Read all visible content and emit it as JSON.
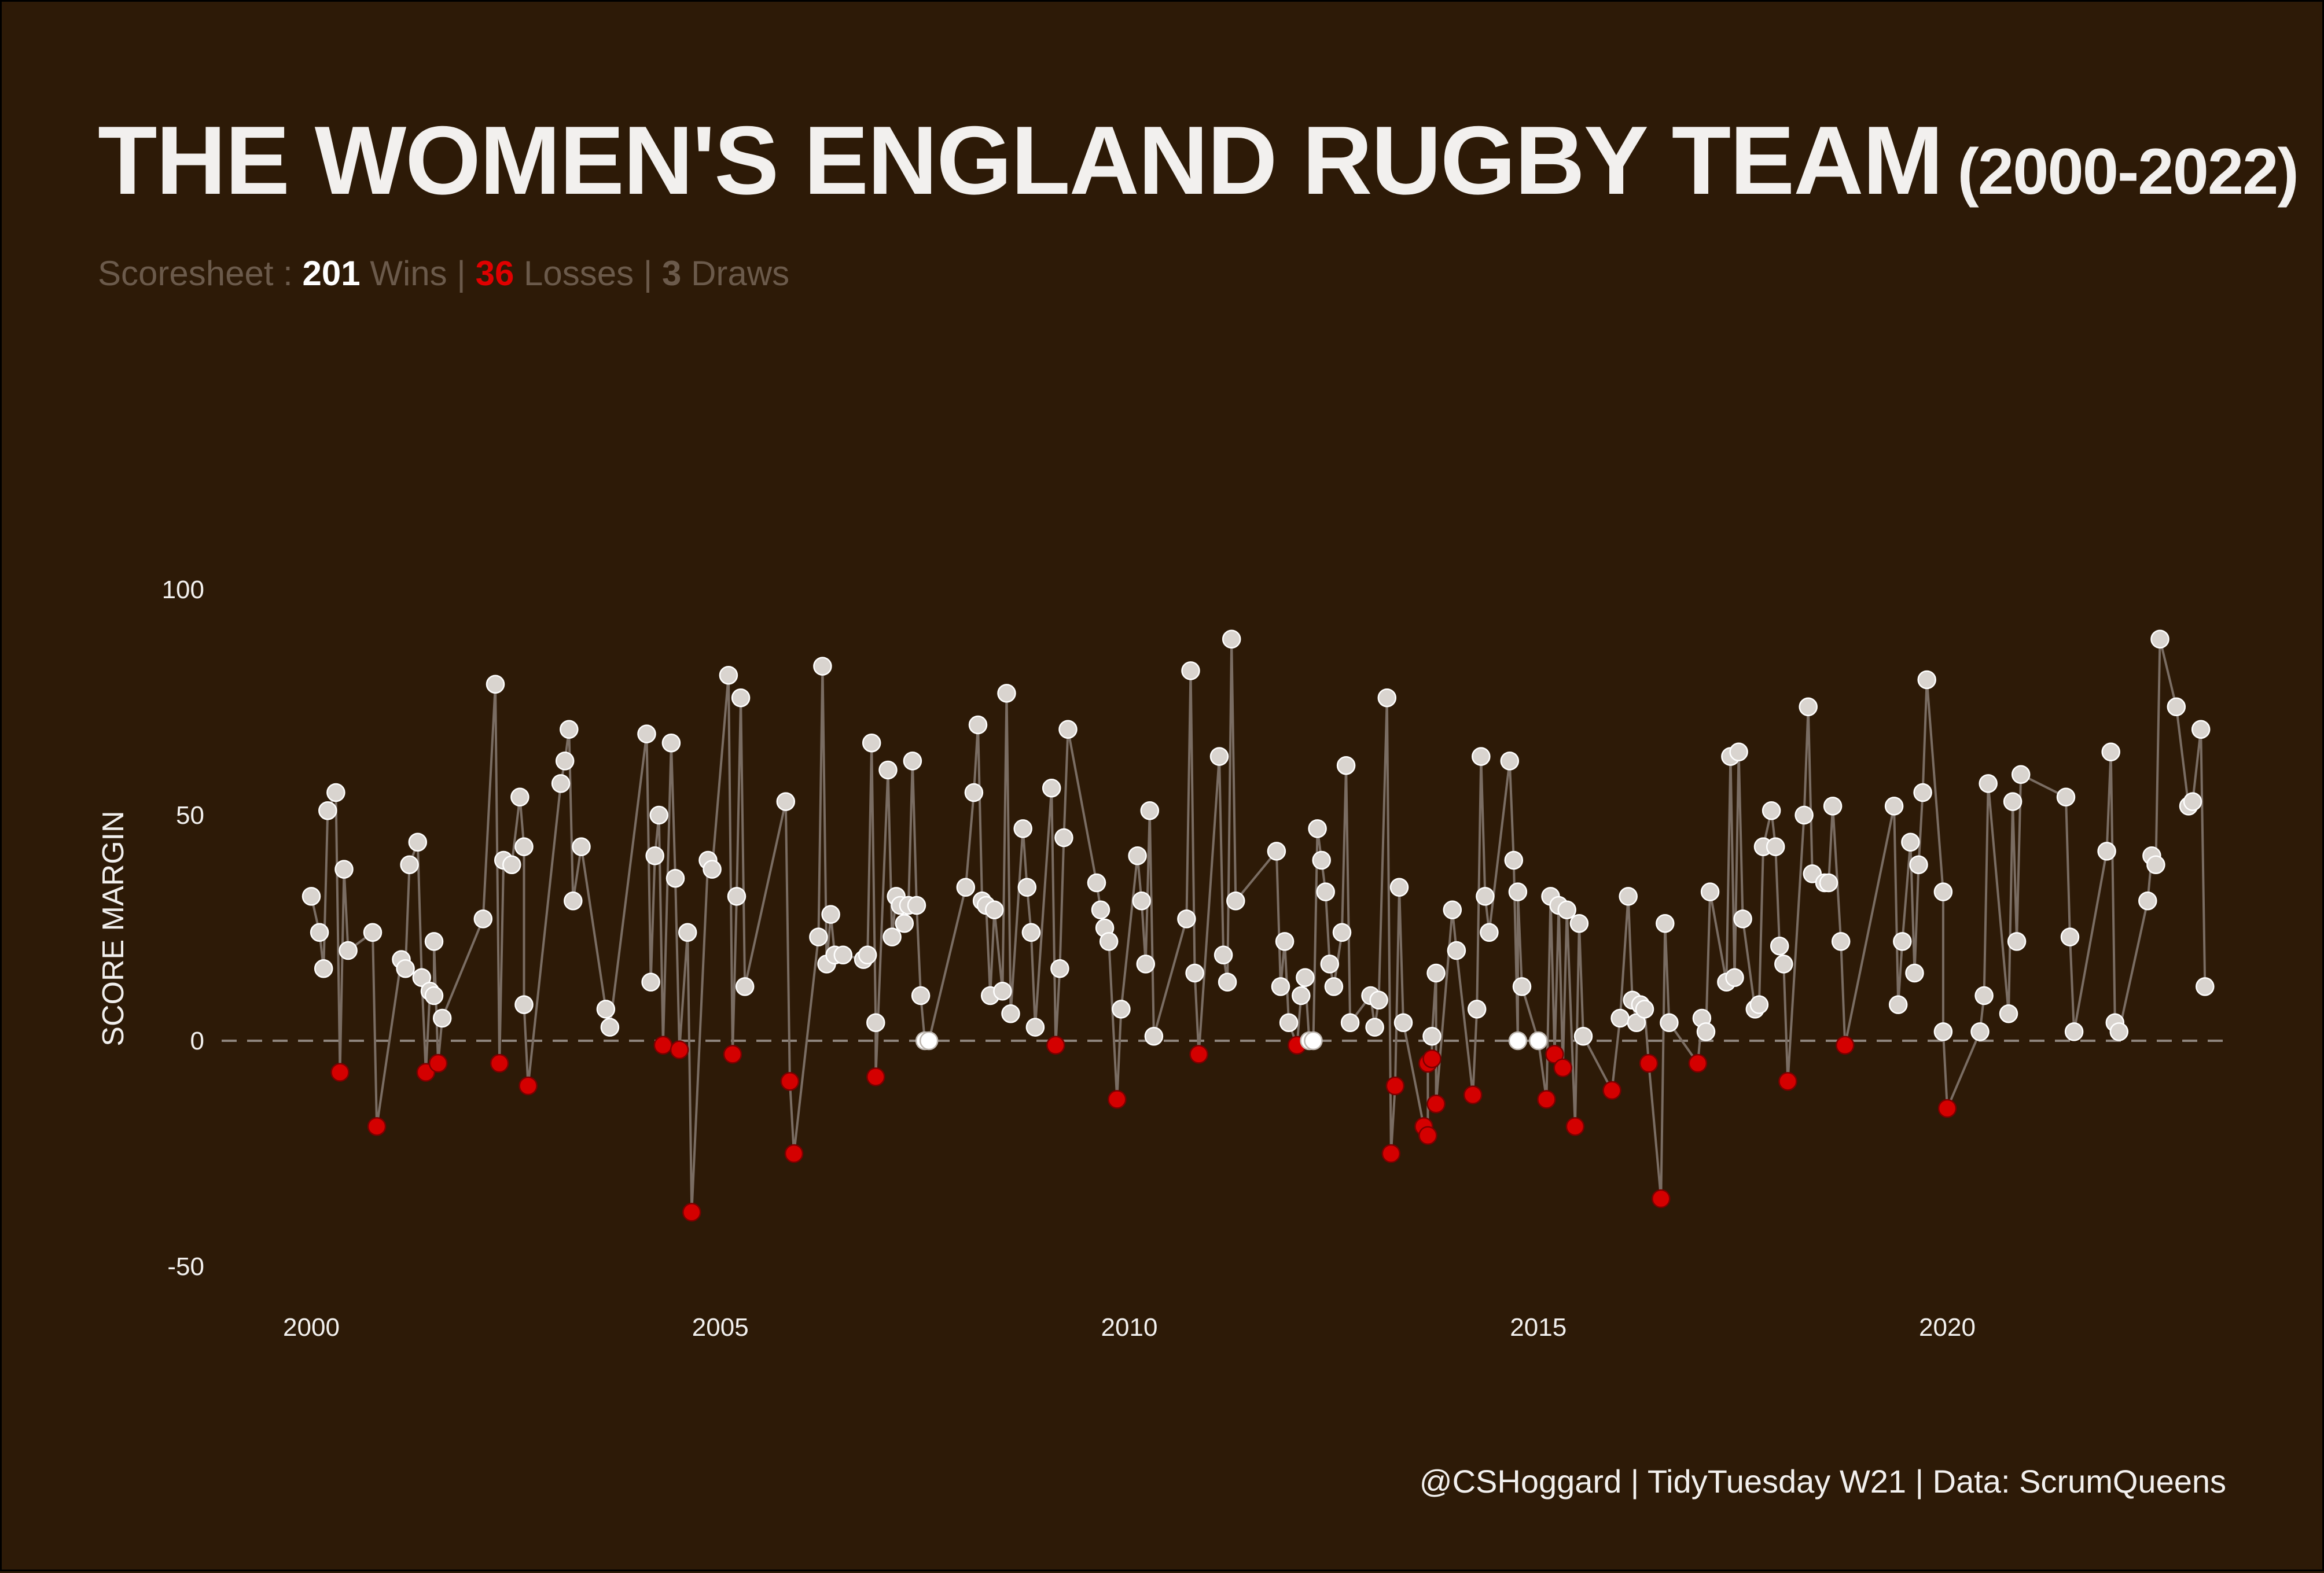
{
  "title": {
    "main": "THE WOMEN'S ENGLAND RUGBY TEAM",
    "years": "(2000-2022)"
  },
  "subtitle": {
    "prefix": "Scoresheet : ",
    "wins": "201",
    "wins_label": " Wins | ",
    "losses": "36",
    "losses_label": " Losses | ",
    "draws": "3",
    "draws_label": " Draws"
  },
  "caption": "@CSHoggard | TidyTuesday W21 | Data: ScrumQueens",
  "colors": {
    "background": "#2d1a07",
    "win": "#d9d4cf",
    "loss": "#d40000",
    "draw": "#ffffff",
    "line": "#7a6d63",
    "zero_line": "#8f857d"
  },
  "chart_data": {
    "type": "scatter",
    "ylabel": "SCORE MARGIN",
    "xlabel": "",
    "xlim": [
      1998.6,
      2023.4
    ],
    "ylim": [
      -60,
      110
    ],
    "xticks": [
      "2000",
      "2005",
      "2010",
      "2015",
      "2020"
    ],
    "yticks": [
      "100",
      "50",
      "0",
      "-50"
    ],
    "reference_line": 0,
    "connect_points": true,
    "grid": false,
    "points": [
      [
        2000.0,
        32
      ],
      [
        2000.1,
        24
      ],
      [
        2000.15,
        16
      ],
      [
        2000.2,
        51
      ],
      [
        2000.3,
        55
      ],
      [
        2000.35,
        -7
      ],
      [
        2000.4,
        38
      ],
      [
        2000.45,
        20
      ],
      [
        2000.75,
        24
      ],
      [
        2000.8,
        -19
      ],
      [
        2001.1,
        18
      ],
      [
        2001.15,
        16
      ],
      [
        2001.2,
        39
      ],
      [
        2001.3,
        44
      ],
      [
        2001.35,
        14
      ],
      [
        2001.4,
        -7
      ],
      [
        2001.45,
        11
      ],
      [
        2001.5,
        10
      ],
      [
        2001.5,
        22
      ],
      [
        2001.55,
        -5
      ],
      [
        2001.6,
        5
      ],
      [
        2002.1,
        27
      ],
      [
        2002.25,
        79
      ],
      [
        2002.3,
        -5
      ],
      [
        2002.35,
        40
      ],
      [
        2002.45,
        39
      ],
      [
        2002.55,
        54
      ],
      [
        2002.6,
        43
      ],
      [
        2002.6,
        8
      ],
      [
        2002.65,
        -10
      ],
      [
        2003.05,
        57
      ],
      [
        2003.1,
        62
      ],
      [
        2003.15,
        69
      ],
      [
        2003.2,
        31
      ],
      [
        2003.3,
        43
      ],
      [
        2003.6,
        7
      ],
      [
        2003.65,
        3
      ],
      [
        2004.1,
        68
      ],
      [
        2004.15,
        13
      ],
      [
        2004.2,
        41
      ],
      [
        2004.25,
        50
      ],
      [
        2004.3,
        -1
      ],
      [
        2004.4,
        66
      ],
      [
        2004.45,
        36
      ],
      [
        2004.5,
        -2
      ],
      [
        2004.6,
        24
      ],
      [
        2004.65,
        -38
      ],
      [
        2004.85,
        40
      ],
      [
        2004.9,
        38
      ],
      [
        2005.1,
        81
      ],
      [
        2005.15,
        -3
      ],
      [
        2005.2,
        32
      ],
      [
        2005.25,
        76
      ],
      [
        2005.3,
        12
      ],
      [
        2005.8,
        53
      ],
      [
        2005.85,
        -9
      ],
      [
        2005.9,
        -25
      ],
      [
        2006.2,
        23
      ],
      [
        2006.25,
        83
      ],
      [
        2006.3,
        17
      ],
      [
        2006.35,
        28
      ],
      [
        2006.4,
        19
      ],
      [
        2006.5,
        19
      ],
      [
        2006.75,
        18
      ],
      [
        2006.8,
        19
      ],
      [
        2006.85,
        66
      ],
      [
        2006.9,
        4
      ],
      [
        2006.9,
        -8
      ],
      [
        2007.05,
        60
      ],
      [
        2007.1,
        23
      ],
      [
        2007.15,
        32
      ],
      [
        2007.2,
        30
      ],
      [
        2007.25,
        26
      ],
      [
        2007.3,
        30
      ],
      [
        2007.35,
        62
      ],
      [
        2007.4,
        30
      ],
      [
        2007.45,
        10
      ],
      [
        2007.5,
        0
      ],
      [
        2007.55,
        0
      ],
      [
        2008.0,
        34
      ],
      [
        2008.1,
        55
      ],
      [
        2008.15,
        70
      ],
      [
        2008.2,
        31
      ],
      [
        2008.25,
        30
      ],
      [
        2008.3,
        10
      ],
      [
        2008.35,
        29
      ],
      [
        2008.45,
        11
      ],
      [
        2008.5,
        77
      ],
      [
        2008.55,
        6
      ],
      [
        2008.7,
        47
      ],
      [
        2008.75,
        34
      ],
      [
        2008.8,
        24
      ],
      [
        2008.85,
        3
      ],
      [
        2009.05,
        56
      ],
      [
        2009.1,
        -1
      ],
      [
        2009.15,
        16
      ],
      [
        2009.2,
        45
      ],
      [
        2009.25,
        69
      ],
      [
        2009.6,
        35
      ],
      [
        2009.65,
        29
      ],
      [
        2009.7,
        25
      ],
      [
        2009.75,
        22
      ],
      [
        2009.85,
        -13
      ],
      [
        2009.9,
        7
      ],
      [
        2010.1,
        41
      ],
      [
        2010.15,
        31
      ],
      [
        2010.2,
        17
      ],
      [
        2010.25,
        51
      ],
      [
        2010.3,
        1
      ],
      [
        2010.7,
        27
      ],
      [
        2010.75,
        82
      ],
      [
        2010.8,
        15
      ],
      [
        2010.85,
        -3
      ],
      [
        2011.1,
        63
      ],
      [
        2011.15,
        19
      ],
      [
        2011.2,
        13
      ],
      [
        2011.25,
        89
      ],
      [
        2011.3,
        31
      ],
      [
        2011.8,
        42
      ],
      [
        2011.85,
        12
      ],
      [
        2011.9,
        22
      ],
      [
        2011.95,
        4
      ],
      [
        2012.05,
        -1
      ],
      [
        2012.1,
        10
      ],
      [
        2012.15,
        14
      ],
      [
        2012.2,
        0
      ],
      [
        2012.25,
        0
      ],
      [
        2012.3,
        47
      ],
      [
        2012.35,
        40
      ],
      [
        2012.4,
        33
      ],
      [
        2012.45,
        17
      ],
      [
        2012.5,
        12
      ],
      [
        2012.6,
        24
      ],
      [
        2012.65,
        61
      ],
      [
        2012.7,
        4
      ],
      [
        2012.95,
        10
      ],
      [
        2013.0,
        3
      ],
      [
        2013.05,
        9
      ],
      [
        2013.15,
        76
      ],
      [
        2013.2,
        -25
      ],
      [
        2013.25,
        -10
      ],
      [
        2013.3,
        34
      ],
      [
        2013.35,
        4
      ],
      [
        2013.6,
        -19
      ],
      [
        2013.65,
        -21
      ],
      [
        2013.65,
        -5
      ],
      [
        2013.7,
        -4
      ],
      [
        2013.7,
        1
      ],
      [
        2013.75,
        15
      ],
      [
        2013.75,
        -14
      ],
      [
        2013.95,
        29
      ],
      [
        2014.0,
        20
      ],
      [
        2014.2,
        -12
      ],
      [
        2014.25,
        7
      ],
      [
        2014.3,
        63
      ],
      [
        2014.35,
        32
      ],
      [
        2014.4,
        24
      ],
      [
        2014.65,
        62
      ],
      [
        2014.7,
        40
      ],
      [
        2014.75,
        0
      ],
      [
        2014.75,
        33
      ],
      [
        2014.8,
        12
      ],
      [
        2015.0,
        0
      ],
      [
        2015.1,
        -13
      ],
      [
        2015.15,
        32
      ],
      [
        2015.2,
        -3
      ],
      [
        2015.25,
        30
      ],
      [
        2015.3,
        -6
      ],
      [
        2015.35,
        29
      ],
      [
        2015.45,
        -19
      ],
      [
        2015.5,
        26
      ],
      [
        2015.55,
        1
      ],
      [
        2015.9,
        -11
      ],
      [
        2016.0,
        5
      ],
      [
        2016.1,
        32
      ],
      [
        2016.15,
        9
      ],
      [
        2016.2,
        4
      ],
      [
        2016.25,
        8
      ],
      [
        2016.3,
        7
      ],
      [
        2016.35,
        -5
      ],
      [
        2016.5,
        -35
      ],
      [
        2016.55,
        26
      ],
      [
        2016.6,
        4
      ],
      [
        2016.95,
        -5
      ],
      [
        2017.0,
        5
      ],
      [
        2017.05,
        2
      ],
      [
        2017.1,
        33
      ],
      [
        2017.3,
        13
      ],
      [
        2017.35,
        63
      ],
      [
        2017.4,
        14
      ],
      [
        2017.45,
        64
      ],
      [
        2017.5,
        27
      ],
      [
        2017.65,
        7
      ],
      [
        2017.7,
        8
      ],
      [
        2017.75,
        43
      ],
      [
        2017.85,
        51
      ],
      [
        2017.9,
        43
      ],
      [
        2017.95,
        21
      ],
      [
        2018.0,
        17
      ],
      [
        2018.05,
        -9
      ],
      [
        2018.25,
        50
      ],
      [
        2018.3,
        74
      ],
      [
        2018.35,
        37
      ],
      [
        2018.5,
        35
      ],
      [
        2018.55,
        35
      ],
      [
        2018.6,
        52
      ],
      [
        2018.7,
        22
      ],
      [
        2018.75,
        -1
      ],
      [
        2019.35,
        52
      ],
      [
        2019.4,
        8
      ],
      [
        2019.45,
        22
      ],
      [
        2019.55,
        44
      ],
      [
        2019.6,
        15
      ],
      [
        2019.65,
        39
      ],
      [
        2019.7,
        55
      ],
      [
        2019.75,
        80
      ],
      [
        2019.95,
        33
      ],
      [
        2019.95,
        2
      ],
      [
        2020.0,
        -15
      ],
      [
        2020.4,
        2
      ],
      [
        2020.45,
        10
      ],
      [
        2020.5,
        57
      ],
      [
        2020.75,
        6
      ],
      [
        2020.8,
        53
      ],
      [
        2020.85,
        22
      ],
      [
        2020.9,
        59
      ],
      [
        2021.45,
        54
      ],
      [
        2021.5,
        23
      ],
      [
        2021.55,
        2
      ],
      [
        2021.95,
        42
      ],
      [
        2022.0,
        64
      ],
      [
        2022.05,
        4
      ],
      [
        2022.1,
        2
      ],
      [
        2022.45,
        31
      ],
      [
        2022.5,
        41
      ],
      [
        2022.55,
        39
      ],
      [
        2022.6,
        89
      ],
      [
        2022.8,
        74
      ],
      [
        2022.95,
        52
      ],
      [
        2023.0,
        53
      ],
      [
        2023.1,
        69
      ],
      [
        2023.15,
        12
      ]
    ]
  }
}
